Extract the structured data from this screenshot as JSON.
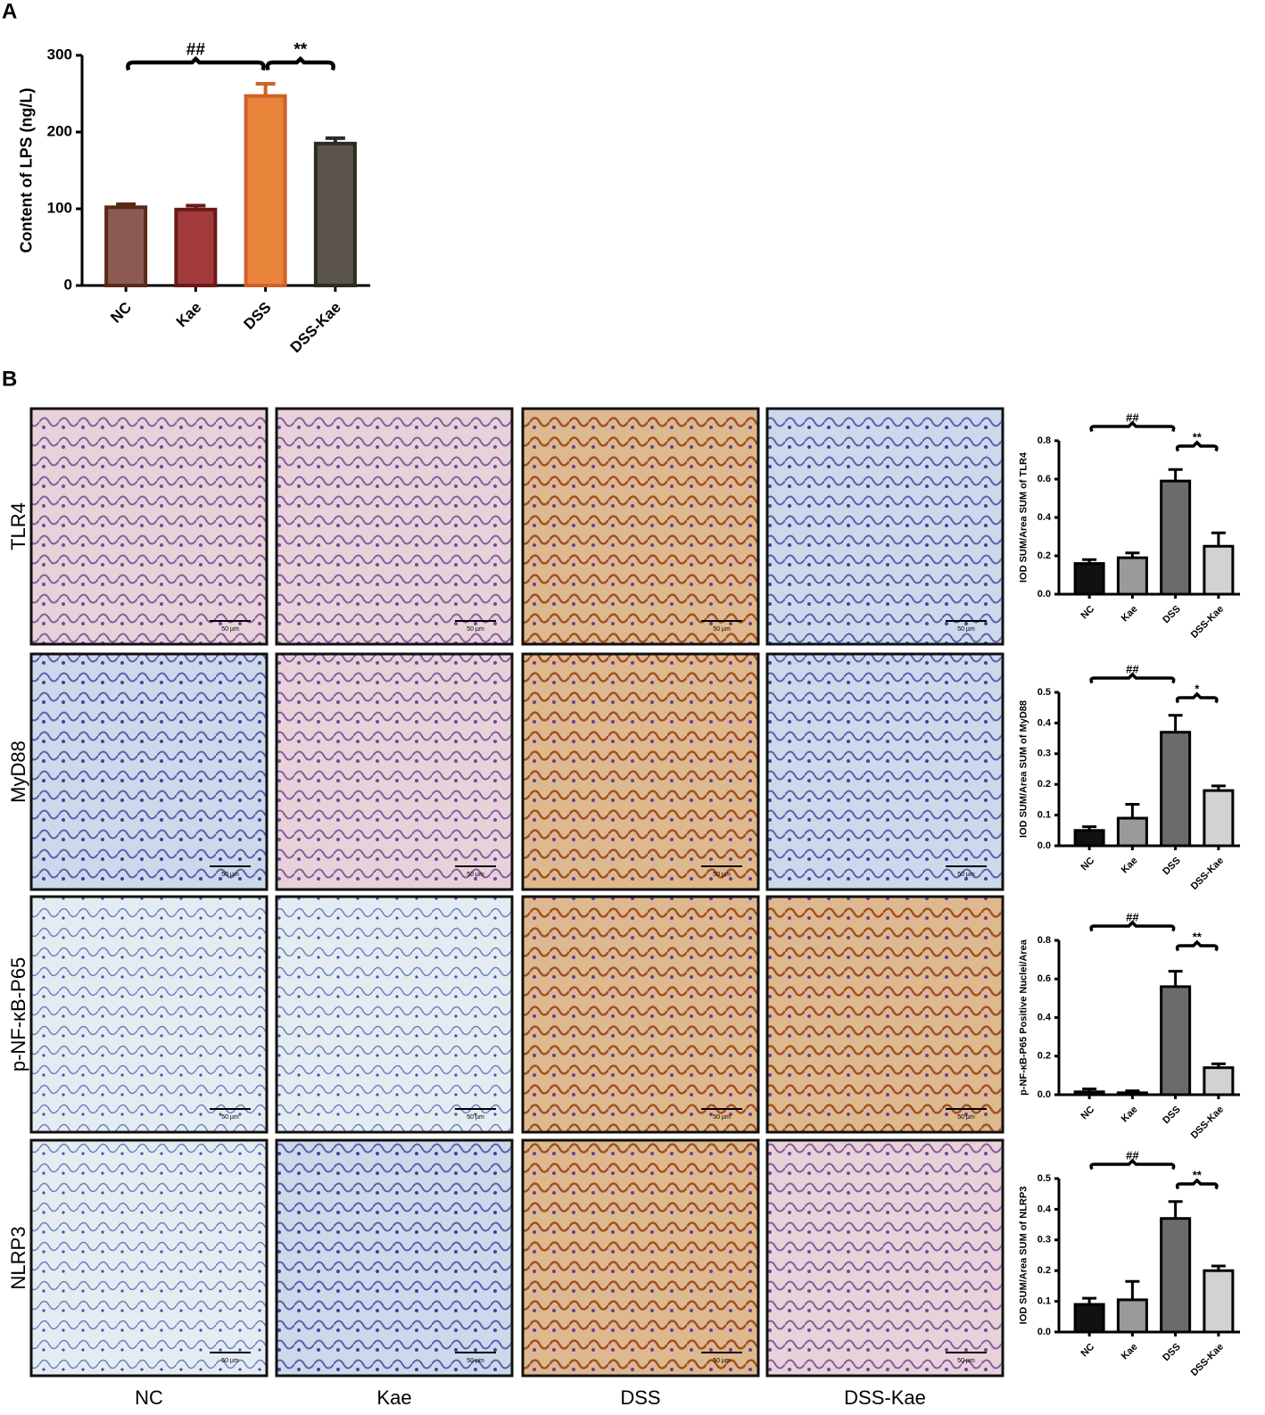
{
  "panel_labels": [
    "A",
    "B"
  ],
  "row_labels": [
    "TLR4",
    "MyD88",
    "p-NF-κB-P65",
    "NLRP3"
  ],
  "column_labels": [
    "NC",
    "Kae",
    "DSS",
    "DSS-Kae"
  ],
  "scale_bar_label": "50 µm",
  "chart_data": [
    {
      "type": "bar",
      "ylabel": "Content of LPS (ng/L)",
      "categories": [
        "NC",
        "Kae",
        "DSS",
        "DSS-Kae"
      ],
      "values": [
        102,
        99,
        247,
        185
      ],
      "errors": [
        4,
        5,
        16,
        7
      ],
      "colors": [
        "#8c5a52",
        "#a2393a",
        "#e8833a",
        "#5b544a"
      ],
      "edge_colors": [
        "#5a2a14",
        "#6a1a1a",
        "#d0602a",
        "#2e2a24"
      ],
      "ylim": [
        0,
        300
      ],
      "yticks": [
        0,
        100,
        200,
        300
      ],
      "annotations": [
        {
          "text": "##",
          "between": [
            "NC",
            "DSS"
          ]
        },
        {
          "text": "**",
          "between": [
            "DSS",
            "DSS-Kae"
          ]
        }
      ]
    },
    {
      "type": "bar",
      "ylabel": "IOD SUM/Area SUM of TLR4",
      "categories": [
        "NC",
        "Kae",
        "DSS",
        "DSS-Kae"
      ],
      "values": [
        0.16,
        0.19,
        0.59,
        0.25
      ],
      "errors": [
        0.02,
        0.025,
        0.06,
        0.07
      ],
      "colors": [
        "#111111",
        "#9a9a9a",
        "#6b6b6b",
        "#d2d2d2"
      ],
      "edge_colors": [
        "#000000",
        "#000000",
        "#000000",
        "#000000"
      ],
      "ylim": [
        0,
        0.8
      ],
      "yticks": [
        {
          "value": 0,
          "label": "0.0"
        },
        0.2,
        0.4,
        0.6,
        0.8
      ],
      "annotations": [
        {
          "text": "##",
          "between": [
            "NC",
            "DSS"
          ]
        },
        {
          "text": "**",
          "between": [
            "DSS",
            "DSS-Kae"
          ]
        }
      ]
    },
    {
      "type": "bar",
      "ylabel": "IOD SUM/Area SUM of MyD88",
      "categories": [
        "NC",
        "Kae",
        "DSS",
        "DSS-Kae"
      ],
      "values": [
        0.05,
        0.09,
        0.37,
        0.18
      ],
      "errors": [
        0.012,
        0.045,
        0.055,
        0.015
      ],
      "colors": [
        "#111111",
        "#9a9a9a",
        "#6b6b6b",
        "#d2d2d2"
      ],
      "edge_colors": [
        "#000000",
        "#000000",
        "#000000",
        "#000000"
      ],
      "ylim": [
        0,
        0.5
      ],
      "yticks": [
        {
          "value": 0,
          "label": "0.0"
        },
        0.1,
        0.2,
        0.3,
        0.4,
        0.5
      ],
      "annotations": [
        {
          "text": "##",
          "between": [
            "NC",
            "DSS"
          ]
        },
        {
          "text": "*",
          "between": [
            "DSS",
            "DSS-Kae"
          ]
        }
      ]
    },
    {
      "type": "bar",
      "ylabel": "p-NF-κB-P65 Positive Nuclei/Area",
      "categories": [
        "NC",
        "Kae",
        "DSS",
        "DSS-Kae"
      ],
      "values": [
        0.015,
        0.01,
        0.56,
        0.14
      ],
      "errors": [
        0.015,
        0.01,
        0.08,
        0.02
      ],
      "colors": [
        "#111111",
        "#9a9a9a",
        "#6b6b6b",
        "#d2d2d2"
      ],
      "edge_colors": [
        "#000000",
        "#000000",
        "#000000",
        "#000000"
      ],
      "ylim": [
        0,
        0.8
      ],
      "yticks": [
        {
          "value": 0,
          "label": "0.0"
        },
        0.2,
        0.4,
        0.6,
        0.8
      ],
      "annotations": [
        {
          "text": "##",
          "between": [
            "NC",
            "DSS"
          ]
        },
        {
          "text": "**",
          "between": [
            "DSS",
            "DSS-Kae"
          ]
        }
      ]
    },
    {
      "type": "bar",
      "ylabel": "IOD SUM/Area SUM of NLRP3",
      "categories": [
        "NC",
        "Kae",
        "DSS",
        "DSS-Kae"
      ],
      "values": [
        0.09,
        0.105,
        0.37,
        0.2
      ],
      "errors": [
        0.02,
        0.06,
        0.055,
        0.015
      ],
      "colors": [
        "#111111",
        "#9a9a9a",
        "#6b6b6b",
        "#d2d2d2"
      ],
      "edge_colors": [
        "#000000",
        "#000000",
        "#000000",
        "#000000"
      ],
      "ylim": [
        0,
        0.5
      ],
      "yticks": [
        {
          "value": 0,
          "label": "0.0"
        },
        0.1,
        0.2,
        0.3,
        0.4,
        0.5
      ],
      "annotations": [
        {
          "text": "##",
          "between": [
            "NC",
            "DSS"
          ]
        },
        {
          "text": "**",
          "between": [
            "DSS",
            "DSS-Kae"
          ]
        }
      ]
    }
  ]
}
